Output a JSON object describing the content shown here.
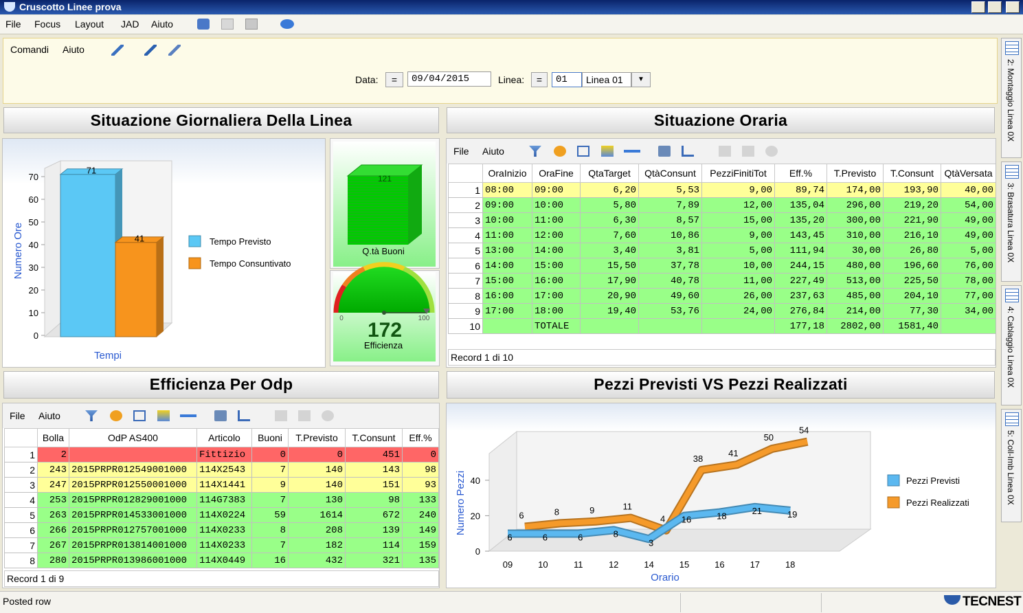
{
  "window": {
    "title": "Cruscotto Linee prova"
  },
  "menu": [
    "File",
    "Focus",
    "Layout",
    "JAD",
    "Aiuto"
  ],
  "toolbar": [
    "Comandi",
    "Aiuto"
  ],
  "filter": {
    "date_label": "Data:",
    "date_operator": "=",
    "date": "09/04/2015",
    "line_label": "Linea:",
    "line_operator": "=",
    "line_code": "01",
    "line_name": "Linea 01"
  },
  "side_tabs": [
    "2: Montaggio Linea 0X",
    "3: Brasatura Linea 0X",
    "4: Cablaggio Linea 0X",
    "5: Coll-Imb Linea 0X"
  ],
  "panels": {
    "daily": "Situazione Giornaliera Della Linea",
    "hourly": "Situazione Oraria",
    "odp": "Efficienza Per Odp",
    "pieces": "Pezzi Previsti VS Pezzi Realizzati"
  },
  "chart_data": [
    {
      "type": "bar",
      "y_label": "Numero Ore",
      "x_label": "Tempi",
      "series": [
        {
          "name": "Tempo Previsto",
          "color": "#5bc8f5",
          "values": [
            71
          ]
        },
        {
          "name": "Tempo Consuntivato",
          "color": "#f7941d",
          "values": [
            41
          ]
        }
      ],
      "ylim": [
        0,
        70
      ],
      "yticks": [
        0,
        10,
        20,
        30,
        40,
        50,
        60,
        70
      ]
    },
    {
      "type": "line",
      "y_label": "Numero Pezzi",
      "x_label": "Orario",
      "categories": [
        "09",
        "10",
        "11",
        "12",
        "14",
        "15",
        "16",
        "17",
        "18",
        null
      ],
      "series": [
        {
          "name": "Pezzi Previsti",
          "color": "#5bb8f0",
          "values": [
            6,
            6,
            6,
            8,
            3,
            16,
            18,
            21,
            19,
            null
          ]
        },
        {
          "name": "Pezzi Realizzati",
          "color": "#f59a2a",
          "values": [
            6,
            8,
            9,
            11,
            4,
            38,
            41,
            50,
            54,
            null
          ]
        }
      ],
      "ylim": [
        0,
        65
      ],
      "yticks": [
        0,
        20,
        40
      ]
    }
  ],
  "quantity": {
    "value": 121,
    "label": "Q.tà Buoni"
  },
  "gauge": {
    "min": 0,
    "max": 100,
    "value": 172,
    "label": "Efficienza"
  },
  "hourly_table": {
    "menu": [
      "File",
      "Aiuto"
    ],
    "columns": [
      null,
      "OraInizio",
      "OraFine",
      "QtaTarget",
      "QtàConsunt",
      "PezziFinitiTot",
      "Eff.%",
      "T.Previsto",
      "T.Consunt",
      "QtàVersata"
    ],
    "rows": [
      [
        "1",
        "08:00",
        "09:00",
        "6,20",
        "5,53",
        "9,00",
        "89,74",
        "174,00",
        "193,90",
        "40,00"
      ],
      [
        "2",
        "09:00",
        "10:00",
        "5,80",
        "7,89",
        "12,00",
        "135,04",
        "296,00",
        "219,20",
        "54,00"
      ],
      [
        "3",
        "10:00",
        "11:00",
        "6,30",
        "8,57",
        "15,00",
        "135,20",
        "300,00",
        "221,90",
        "49,00"
      ],
      [
        "4",
        "11:00",
        "12:00",
        "7,60",
        "10,86",
        "9,00",
        "143,45",
        "310,00",
        "216,10",
        "49,00"
      ],
      [
        "5",
        "13:00",
        "14:00",
        "3,40",
        "3,81",
        "5,00",
        "111,94",
        "30,00",
        "26,80",
        "5,00"
      ],
      [
        "6",
        "14:00",
        "15:00",
        "15,50",
        "37,78",
        "10,00",
        "244,15",
        "480,00",
        "196,60",
        "76,00"
      ],
      [
        "7",
        "15:00",
        "16:00",
        "17,90",
        "40,78",
        "11,00",
        "227,49",
        "513,00",
        "225,50",
        "78,00"
      ],
      [
        "8",
        "16:00",
        "17:00",
        "20,90",
        "49,60",
        "26,00",
        "237,63",
        "485,00",
        "204,10",
        "77,00"
      ],
      [
        "9",
        "17:00",
        "18:00",
        "19,40",
        "53,76",
        "24,00",
        "276,84",
        "214,00",
        "77,30",
        "34,00"
      ],
      [
        "10",
        null,
        "TOTALE",
        null,
        null,
        null,
        "177,18",
        "2802,00",
        "1581,40",
        null
      ]
    ],
    "row_colors": [
      "#ffff99",
      "#99ff88",
      "#99ff88",
      "#99ff88",
      "#99ff88",
      "#99ff88",
      "#99ff88",
      "#99ff88",
      "#99ff88",
      "#99ff88"
    ],
    "status": "Record 1 di 10"
  },
  "odp_table": {
    "menu": [
      "File",
      "Aiuto"
    ],
    "columns": [
      null,
      "Bolla",
      "OdP AS400",
      "Articolo",
      "Buoni",
      "T.Previsto",
      "T.Consunt",
      "Eff.%"
    ],
    "rows": [
      [
        "1",
        "2",
        null,
        "Fittizio",
        "0",
        "0",
        "451",
        "0"
      ],
      [
        "2",
        "243",
        "2015PRPR012549001000",
        "114X2543",
        "7",
        "140",
        "143",
        "98"
      ],
      [
        "3",
        "247",
        "2015PRPR012550001000",
        "114X1441",
        "9",
        "140",
        "151",
        "93"
      ],
      [
        "4",
        "253",
        "2015PRPR012829001000",
        "114G7383",
        "7",
        "130",
        "98",
        "133"
      ],
      [
        "5",
        "263",
        "2015PRPR014533001000",
        "114X0224",
        "59",
        "1614",
        "672",
        "240"
      ],
      [
        "6",
        "266",
        "2015PRPR012757001000",
        "114X0233",
        "8",
        "208",
        "139",
        "149"
      ],
      [
        "7",
        "267",
        "2015PRPR013814001000",
        "114X0233",
        "7",
        "182",
        "114",
        "159"
      ],
      [
        "8",
        "280",
        "2015PRPR013986001000",
        "114X0449",
        "16",
        "432",
        "321",
        "135"
      ]
    ],
    "row_colors": [
      "#ff6666",
      "#ffff99",
      "#ffff99",
      "#99ff88",
      "#99ff88",
      "#99ff88",
      "#99ff88",
      "#99ff88"
    ],
    "status": "Record 1 di 9"
  },
  "status_bar": {
    "message": "Posted row",
    "brand": "TECNEST"
  }
}
